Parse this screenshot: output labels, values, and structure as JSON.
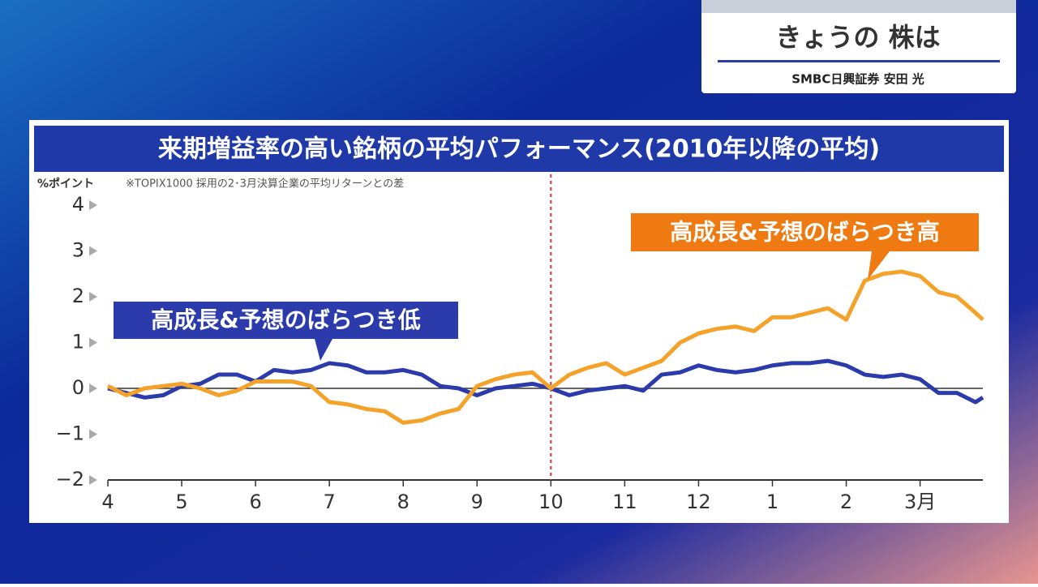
{
  "header": {
    "title": "きょうの 株は",
    "subtitle": "SMBC日興証券 安田 光"
  },
  "chart_data": {
    "type": "line",
    "title": "来期増益率の高い銘柄の平均パフォーマンス(2010年以降の平均)",
    "y_label": "%ポイント",
    "note": "※TOPIX1000 採用の2･3月決算企業の平均リターンとの差",
    "x": [
      0,
      0.25,
      0.5,
      0.75,
      1,
      1.25,
      1.5,
      1.75,
      2,
      2.25,
      2.5,
      2.75,
      3,
      3.25,
      3.5,
      3.75,
      4,
      4.25,
      4.5,
      4.75,
      5,
      5.25,
      5.5,
      5.75,
      6,
      6.25,
      6.5,
      6.75,
      7,
      7.25,
      7.5,
      7.75,
      8,
      8.25,
      8.5,
      8.75,
      9,
      9.25,
      9.5,
      9.75,
      10,
      10.25,
      10.5,
      10.75,
      11,
      11.25,
      11.5,
      11.75,
      11.85
    ],
    "series": [
      {
        "name": "高成長&予想のばらつき低",
        "color": "#2b3bab",
        "values": [
          0,
          -0.1,
          -0.2,
          -0.15,
          0.05,
          0.1,
          0.3,
          0.3,
          0.15,
          0.4,
          0.35,
          0.4,
          0.55,
          0.5,
          0.35,
          0.35,
          0.4,
          0.3,
          0.05,
          0,
          -0.15,
          0,
          0.05,
          0.1,
          0,
          -0.15,
          -0.05,
          0,
          0.05,
          -0.05,
          0.3,
          0.35,
          0.5,
          0.4,
          0.35,
          0.4,
          0.5,
          0.55,
          0.55,
          0.6,
          0.5,
          0.3,
          0.25,
          0.3,
          0.2,
          -0.1,
          -0.1,
          -0.3,
          -0.2
        ]
      },
      {
        "name": "高成長&予想のばらつき高",
        "color": "#f5a22a",
        "values": [
          0.05,
          -0.15,
          0,
          0.05,
          0.1,
          0,
          -0.15,
          -0.05,
          0.15,
          0.15,
          0.15,
          0.05,
          -0.3,
          -0.35,
          -0.45,
          -0.5,
          -0.75,
          -0.7,
          -0.55,
          -0.45,
          0.05,
          0.2,
          0.3,
          0.35,
          0,
          0.3,
          0.45,
          0.55,
          0.3,
          0.45,
          0.6,
          1,
          1.2,
          1.3,
          1.35,
          1.25,
          1.55,
          1.55,
          1.65,
          1.75,
          1.5,
          2.35,
          2.5,
          2.55,
          2.45,
          2.1,
          2,
          1.65,
          1.5
        ]
      }
    ],
    "xlim": [
      0,
      11.85
    ],
    "xticks": [
      {
        "value": 0,
        "label": "4"
      },
      {
        "value": 1,
        "label": "5"
      },
      {
        "value": 2,
        "label": "6"
      },
      {
        "value": 3,
        "label": "7"
      },
      {
        "value": 4,
        "label": "8"
      },
      {
        "value": 5,
        "label": "9"
      },
      {
        "value": 6,
        "label": "10"
      },
      {
        "value": 7,
        "label": "11"
      },
      {
        "value": 8,
        "label": "12"
      },
      {
        "value": 9,
        "label": "1"
      },
      {
        "value": 10,
        "label": "2"
      },
      {
        "value": 11,
        "label": "3月"
      }
    ],
    "ylim": [
      -2,
      4
    ],
    "yticks": [
      {
        "value": -2,
        "label": "−2"
      },
      {
        "value": -1,
        "label": "−1"
      },
      0,
      1,
      2,
      3,
      4
    ],
    "reference_x": 6
  }
}
